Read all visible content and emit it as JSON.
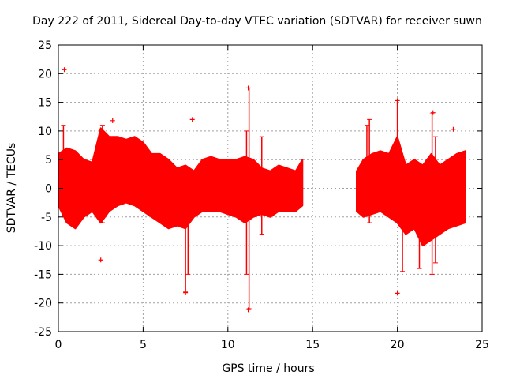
{
  "chart_data": {
    "type": "scatter",
    "title": "Day 222 of 2011, Sidereal Day-to-day VTEC variation (SDTVAR) for receiver suwn",
    "xlabel": "GPS time / hours",
    "ylabel": "SDTVAR / TECUs",
    "xlim": [
      0,
      25
    ],
    "ylim": [
      -25,
      25
    ],
    "xticks": [
      0,
      5,
      10,
      15,
      20,
      25
    ],
    "yticks": [
      -25,
      -20,
      -15,
      -10,
      -5,
      0,
      5,
      10,
      15,
      20,
      25
    ],
    "grid": true,
    "marker": "+",
    "color": "#ff0000",
    "band_series": {
      "description": "dense red band: approximate upper/lower envelope of plotted points",
      "x": [
        0.0,
        0.5,
        1.0,
        1.5,
        2.0,
        2.5,
        3.0,
        3.5,
        4.0,
        4.5,
        5.0,
        5.5,
        6.0,
        6.5,
        7.0,
        7.5,
        8.0,
        8.5,
        9.0,
        9.5,
        10.0,
        10.5,
        11.0,
        11.5,
        12.0,
        12.5,
        13.0,
        13.5,
        14.0,
        14.4
      ],
      "upper": [
        6,
        7,
        6.5,
        5,
        4.5,
        10.5,
        9,
        9,
        8.5,
        9,
        8,
        6,
        6,
        5,
        3.5,
        4,
        3,
        5,
        5.5,
        5,
        5,
        5,
        5.5,
        5,
        3.5,
        3,
        4,
        3.5,
        3,
        5
      ],
      "lower": [
        -3,
        -6,
        -7,
        -5,
        -4,
        -6,
        -4,
        -3,
        -2.5,
        -3,
        -4,
        -5,
        -6,
        -7,
        -6.5,
        -7,
        -5,
        -4,
        -4,
        -4,
        -4.5,
        -5,
        -6,
        -5,
        -4.5,
        -5,
        -4,
        -4,
        -4,
        -3
      ]
    },
    "band_series_2": {
      "x": [
        17.6,
        18.0,
        18.5,
        19.0,
        19.5,
        20.0,
        20.5,
        21.0,
        21.5,
        22.0,
        22.5,
        23.0,
        23.5,
        24.0
      ],
      "upper": [
        3,
        5,
        6,
        6.5,
        6,
        9,
        4,
        5,
        4,
        6,
        4,
        5,
        6,
        6.5
      ],
      "lower": [
        -4,
        -5,
        -4.5,
        -4,
        -5,
        -6,
        -8,
        -7,
        -10,
        -9,
        -8,
        -7,
        -6.5,
        -6
      ]
    },
    "outliers": [
      {
        "x": 0.35,
        "y": 20.7
      },
      {
        "x": 2.5,
        "y": -12.5
      },
      {
        "x": 3.2,
        "y": 11.8
      },
      {
        "x": 7.9,
        "y": 12.0
      },
      {
        "x": 7.5,
        "y": -18.2
      },
      {
        "x": 11.2,
        "y": 17.5
      },
      {
        "x": 11.2,
        "y": -21.2
      },
      {
        "x": 20.0,
        "y": 15.3
      },
      {
        "x": 20.0,
        "y": -18.3
      },
      {
        "x": 22.1,
        "y": 13.2
      },
      {
        "x": 23.3,
        "y": 10.3
      }
    ],
    "spikes": [
      {
        "x": 0.3,
        "y_min": -2,
        "y_max": 11
      },
      {
        "x": 2.6,
        "y_min": -6,
        "y_max": 11
      },
      {
        "x": 7.5,
        "y_min": -18,
        "y_max": 2
      },
      {
        "x": 7.65,
        "y_min": -15,
        "y_max": 3
      },
      {
        "x": 11.1,
        "y_min": -15,
        "y_max": 10
      },
      {
        "x": 11.25,
        "y_min": -21,
        "y_max": 17.5
      },
      {
        "x": 12.0,
        "y_min": -8,
        "y_max": 9
      },
      {
        "x": 18.35,
        "y_min": -6,
        "y_max": 12
      },
      {
        "x": 20.0,
        "y_min": -5,
        "y_max": 15.3
      },
      {
        "x": 20.3,
        "y_min": -14.5,
        "y_max": 5
      },
      {
        "x": 21.3,
        "y_min": -14,
        "y_max": 4
      },
      {
        "x": 22.05,
        "y_min": -15,
        "y_max": 13
      },
      {
        "x": 22.25,
        "y_min": -13,
        "y_max": 9
      },
      {
        "x": 18.2,
        "y_min": -3,
        "y_max": 11
      }
    ]
  }
}
